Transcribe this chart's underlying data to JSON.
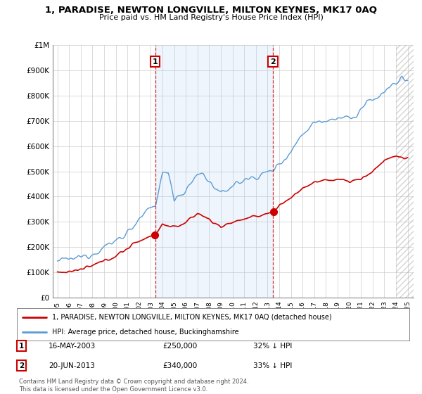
{
  "title": "1, PARADISE, NEWTON LONGVILLE, MILTON KEYNES, MK17 0AQ",
  "subtitle": "Price paid vs. HM Land Registry's House Price Index (HPI)",
  "ylim": [
    0,
    1000000
  ],
  "yticks": [
    0,
    100000,
    200000,
    300000,
    400000,
    500000,
    600000,
    700000,
    800000,
    900000,
    1000000
  ],
  "ytick_labels": [
    "£0",
    "£100K",
    "£200K",
    "£300K",
    "£400K",
    "£500K",
    "£600K",
    "£700K",
    "£800K",
    "£900K",
    "£1M"
  ],
  "hpi_color": "#5b9bd5",
  "price_color": "#cc0000",
  "transaction1_x": 2003.37,
  "transaction1_price_y": 250000,
  "transaction2_x": 2013.46,
  "transaction2_price_y": 340000,
  "transaction1_date": "16-MAY-2003",
  "transaction1_price": 250000,
  "transaction1_pct": "32% ↓ HPI",
  "transaction2_date": "20-JUN-2013",
  "transaction2_price": 340000,
  "transaction2_pct": "33% ↓ HPI",
  "legend_property": "1, PARADISE, NEWTON LONGVILLE, MILTON KEYNES, MK17 0AQ (detached house)",
  "legend_hpi": "HPI: Average price, detached house, Buckinghamshire",
  "footnote": "Contains HM Land Registry data © Crown copyright and database right 2024.\nThis data is licensed under the Open Government Licence v3.0.",
  "background_color": "#ffffff",
  "grid_color": "#cccccc",
  "shade_color": "#ddeeff",
  "xmin": 1995,
  "xmax": 2025,
  "hatch_start": 2024.0
}
